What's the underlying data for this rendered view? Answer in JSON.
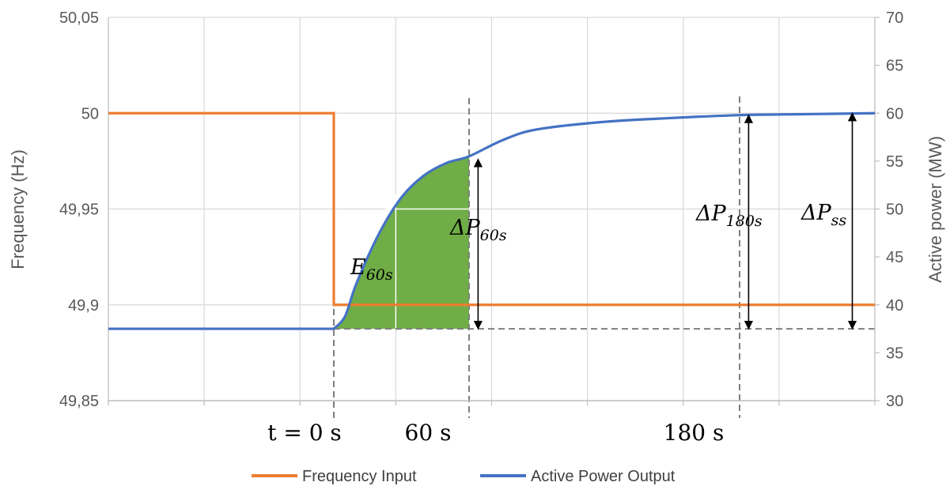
{
  "chart_data": {
    "type": "line",
    "ylabel_left": "Frequency (Hz)",
    "ylabel_right": "Active power (MW)",
    "y_left_ticks": [
      "50,05",
      "50",
      "49,95",
      "49,9",
      "49,85"
    ],
    "y_right_ticks": [
      "70",
      "65",
      "60",
      "55",
      "50",
      "45",
      "40",
      "35",
      "30"
    ],
    "ylim_left": [
      49.85,
      50.05
    ],
    "ylim_right": [
      30,
      70
    ],
    "xlim": [
      -100,
      240
    ],
    "grid": true,
    "legend_position": "bottom",
    "series": [
      {
        "name": "Frequency Input",
        "axis": "left",
        "color": "#ED7D31",
        "x": [
          -100,
          0,
          0,
          240
        ],
        "y": [
          50.0,
          50.0,
          49.9,
          49.9
        ]
      },
      {
        "name": "Active Power Output",
        "axis": "right",
        "color": "#4472C4",
        "x": [
          -100,
          0,
          5,
          10,
          20,
          30,
          40,
          50,
          60,
          75,
          90,
          120,
          150,
          180,
          210,
          240
        ],
        "y": [
          37.5,
          37.5,
          38.8,
          42.2,
          47.4,
          51.2,
          53.5,
          54.8,
          55.5,
          57.2,
          58.3,
          59.1,
          59.5,
          59.8,
          59.9,
          60.0
        ]
      }
    ],
    "energy_area": {
      "label": "E60s",
      "from_x": 0,
      "to_x": 60,
      "color": "#70AD47"
    },
    "reference_lines": {
      "power": 37.5,
      "x": [
        0,
        60,
        180
      ]
    },
    "annotations": {
      "t0_label": "t = 0 s",
      "t60_label": "60 s",
      "t180_label": "180 s",
      "energy_label": "E60s",
      "dp60_label": "ΔP60s",
      "dp180_label": "ΔP180s",
      "dpss_label": "ΔPss"
    }
  }
}
